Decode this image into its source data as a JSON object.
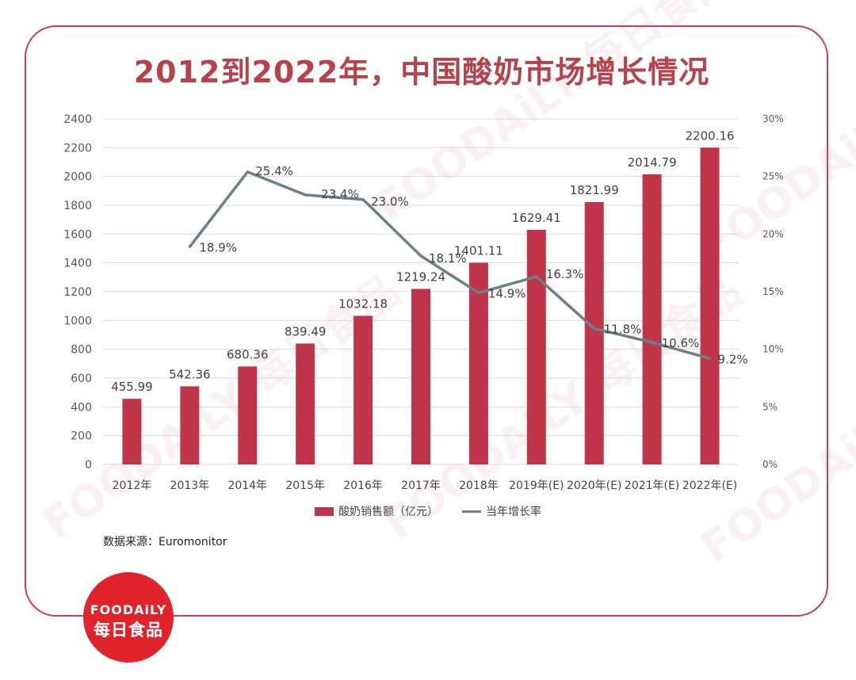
{
  "title": "2012到2022年，中国酸奶市场增长情况",
  "source": "数据来源：Euromonitor",
  "logo": {
    "en": "FOODAiLY",
    "cn": "每日食品"
  },
  "watermark": "FOODAiLY 每日食品",
  "colors": {
    "bar": "#c0354a",
    "line": "#6b8188",
    "title": "#b6424c",
    "frame": "#d23a4c",
    "logo": "#e1232c"
  },
  "chart_data": {
    "type": "bar",
    "categories": [
      "2012年",
      "2013年",
      "2014年",
      "2015年",
      "2016年",
      "2017年",
      "2018年",
      "2019年(E)",
      "2020年(E)",
      "2021年(E)",
      "2022年(E)"
    ],
    "series": [
      {
        "name": "酸奶销售额（亿元）",
        "type": "bar",
        "axis": "left",
        "values": [
          455.99,
          542.36,
          680.36,
          839.49,
          1032.18,
          1219.24,
          1401.11,
          1629.41,
          1821.99,
          2014.79,
          2200.16
        ],
        "labels": [
          "455.99",
          "542.36",
          "680.36",
          "839.49",
          "1032.18",
          "1219.24",
          "1401.11",
          "1629.41",
          "1821.99",
          "2014.79",
          "2200.16"
        ]
      },
      {
        "name": "当年增长率",
        "type": "line",
        "axis": "right",
        "values": [
          null,
          18.9,
          25.4,
          23.4,
          23.0,
          18.1,
          14.9,
          16.3,
          11.8,
          10.6,
          9.2
        ],
        "labels": [
          "",
          "18.9%",
          "25.4%",
          "23.4%",
          "23.0%",
          "18.1%",
          "14.9%",
          "16.3%",
          "11.8%",
          "10.6%",
          "9.2%"
        ]
      }
    ],
    "ylim": [
      0,
      2400
    ],
    "yticks": [
      "0",
      "200",
      "400",
      "600",
      "800",
      "1000",
      "1200",
      "1400",
      "1600",
      "1800",
      "2000",
      "2200",
      "2400"
    ],
    "y2lim": [
      0,
      30
    ],
    "y2ticks": [
      "0%",
      "5%",
      "10%",
      "15%",
      "20%",
      "25%",
      "30%"
    ],
    "grid": true,
    "legend_position": "bottom"
  }
}
